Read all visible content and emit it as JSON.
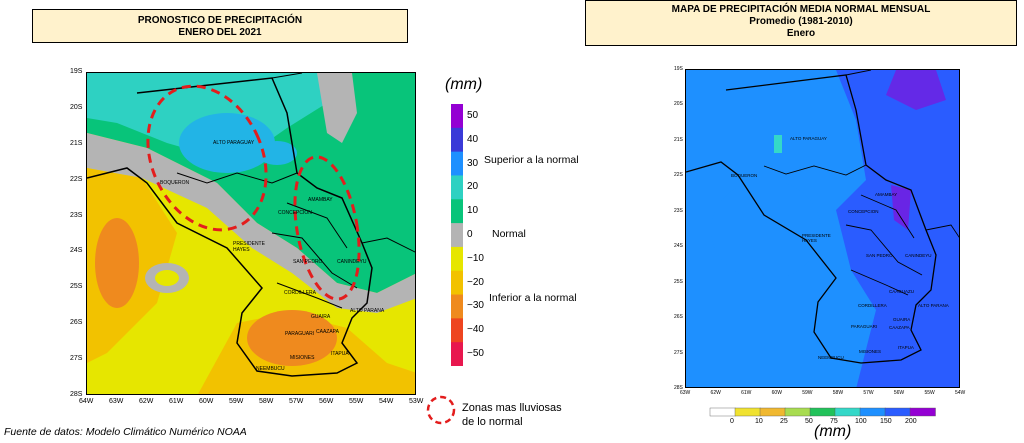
{
  "left_title": {
    "line1": "PRONOSTICO DE PRECIPITACIÓN",
    "line2": "ENERO DEL 2021"
  },
  "right_title": {
    "line1": "MAPA DE PRECIPITACIÓN MEDIA NORMAL MENSUAL",
    "line2": "Promedio (1981-2010)",
    "line3": "Enero"
  },
  "left_map": {
    "lat_ticks": [
      "19S",
      "20S",
      "21S",
      "22S",
      "23S",
      "24S",
      "25S",
      "26S",
      "27S",
      "28S"
    ],
    "lon_ticks": [
      "64W",
      "63W",
      "62W",
      "61W",
      "60W",
      "59W",
      "58W",
      "57W",
      "56W",
      "55W",
      "54W",
      "53W"
    ],
    "places": [
      "ALTO PARAGUAY",
      "BOQUERON",
      "CONCEPCION",
      "AMAMBAY",
      "PRESIDENTE HAYES",
      "SAN PEDRO",
      "CANINDEYU",
      "CORDILLERA",
      "ALTO PARANA",
      "GUAIRA",
      "PARAGUARI",
      "CAAZAPA",
      "MISIONES",
      "ITAPUA",
      "NEEMBUCU"
    ]
  },
  "right_map": {
    "lat_ticks": [
      "19S",
      "20S",
      "21S",
      "22S",
      "23S",
      "24S",
      "25S",
      "26S",
      "27S",
      "28S"
    ],
    "lon_ticks": [
      "63W",
      "62W",
      "61W",
      "60W",
      "59W",
      "58W",
      "57W",
      "56W",
      "55W",
      "54W"
    ],
    "places": [
      "ALTO PARAGUAY",
      "BOQUERON",
      "CONCEPCION",
      "AMAMBAY",
      "PRESIDENTE HAYES",
      "SAN PEDRO",
      "CANINDEYU",
      "CAAGUAZU",
      "CORDILLERA",
      "ALTO PARANA",
      "GUAIRA",
      "PARAGUARI",
      "CAAZAPA",
      "MISIONES",
      "ITAPUA",
      "NEEMBUCU"
    ]
  },
  "anomaly_scale": {
    "unit": "(mm)",
    "ticks": [
      "50",
      "40",
      "30",
      "20",
      "10",
      "0",
      "−10",
      "−20",
      "−30",
      "−40",
      "−50"
    ],
    "colors": [
      "#9400d3",
      "#3a3ad8",
      "#1e90ff",
      "#2ed1c2",
      "#08c47a",
      "#b4b4b4",
      "#e6e600",
      "#f2c200",
      "#ef8a1e",
      "#ee4520",
      "#e8174e"
    ],
    "labels": {
      "above": "Superior a la normal",
      "normal": "Normal",
      "below": "Inferior a la normal"
    }
  },
  "normal_scale": {
    "unit": "(mm)",
    "ticks": [
      "0",
      "10",
      "25",
      "50",
      "75",
      "100",
      "150",
      "200"
    ],
    "colors": [
      "#ffffff",
      "#f0e230",
      "#f0b830",
      "#a8dc50",
      "#22c25a",
      "#34d8c8",
      "#1e90ff",
      "#2a5cff",
      "#9400d3"
    ]
  },
  "legend_zones": {
    "line1": "Zonas mas lluviosas",
    "line2": "de lo normal"
  },
  "source": "Fuente de datos: Modelo Climático Numérico NOAA"
}
